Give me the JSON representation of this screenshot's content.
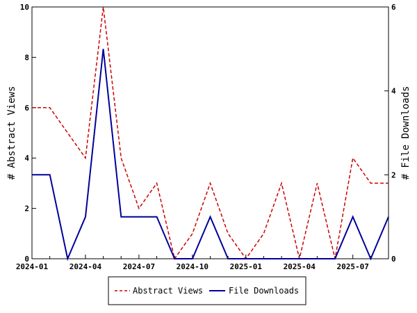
{
  "chart_data": {
    "type": "line",
    "x": [
      "2024-01",
      "2024-02",
      "2024-03",
      "2024-04",
      "2024-05",
      "2024-06",
      "2024-07",
      "2024-08",
      "2024-09",
      "2024-10",
      "2024-11",
      "2024-12",
      "2025-01",
      "2025-02",
      "2025-03",
      "2025-04",
      "2025-05",
      "2025-06",
      "2025-07",
      "2025-08",
      "2025-09"
    ],
    "x_tick_labels": [
      "2024-01",
      "2024-04",
      "2024-07",
      "2024-10",
      "2025-01",
      "2025-04",
      "2025-07"
    ],
    "ylabel_left": "# Abstract Views",
    "ylabel_right": "# File Downloads",
    "ylim_left": [
      0,
      10
    ],
    "ylim_right": [
      0,
      6
    ],
    "y_ticks_left": [
      "0",
      "2",
      "4",
      "6",
      "8",
      "10"
    ],
    "y_ticks_right": [
      "0",
      "2",
      "4",
      "6"
    ],
    "grid": false,
    "legend_position": "bottom-center",
    "series": [
      {
        "name": "Abstract Views",
        "axis": "left",
        "color": "#cc0000",
        "dash": "dashed",
        "values": [
          6,
          6,
          5,
          4,
          10,
          4,
          2,
          3,
          0,
          1,
          3,
          1,
          0,
          1,
          3,
          0,
          3,
          0,
          4,
          3,
          3
        ]
      },
      {
        "name": "File Downloads",
        "axis": "right",
        "color": "#000099",
        "dash": "solid",
        "values": [
          2,
          2,
          0,
          1,
          5,
          1,
          1,
          1,
          0,
          0,
          1,
          0,
          0,
          0,
          0,
          0,
          0,
          0,
          1,
          0,
          1
        ]
      }
    ]
  }
}
